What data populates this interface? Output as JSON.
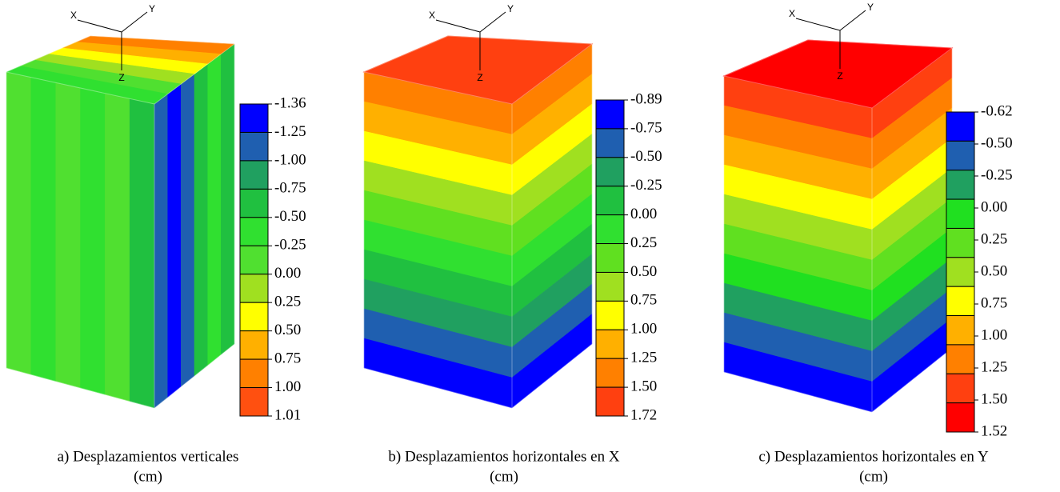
{
  "panels": [
    {
      "caption": "a) Desplazamientos verticales",
      "unit": "(cm)",
      "axes": [
        "X",
        "Y",
        "Z"
      ],
      "legend": {
        "labels": [
          "-1.36",
          "-1.25",
          "-1.00",
          "-0.75",
          "-0.50",
          "-0.25",
          "0.00",
          "0.25",
          "0.50",
          "0.75",
          "1.00",
          "1.01"
        ],
        "colors": [
          "#0000ff",
          "#1f5fb0",
          "#20a060",
          "#20c040",
          "#30e030",
          "#50e030",
          "#a0e020",
          "#ffff00",
          "#ffb000",
          "#ff8000",
          "#ff5010"
        ]
      }
    },
    {
      "caption": "b) Desplazamientos horizontales en X",
      "unit": "(cm)",
      "axes": [
        "X",
        "Y",
        "Z"
      ],
      "legend": {
        "labels": [
          "-0.89",
          "-0.75",
          "-0.50",
          "-0.25",
          "0.00",
          "0.25",
          "0.50",
          "0.75",
          "1.00",
          "1.25",
          "1.50",
          "1.72"
        ],
        "colors": [
          "#0000ff",
          "#1f5fb0",
          "#20a060",
          "#20c040",
          "#30e030",
          "#60e020",
          "#a0e020",
          "#ffff00",
          "#ffb000",
          "#ff8000",
          "#ff4010"
        ]
      }
    },
    {
      "caption": "c) Desplazamientos horizontales en Y",
      "unit": "(cm)",
      "axes": [
        "X",
        "Y",
        "Z"
      ],
      "legend": {
        "labels": [
          "-0.62",
          "-0.50",
          "-0.25",
          "0.00",
          "0.25",
          "0.50",
          "0.75",
          "1.00",
          "1.25",
          "1.50",
          "1.52"
        ],
        "colors": [
          "#0000ff",
          "#1f5fb0",
          "#20a060",
          "#20e020",
          "#60e020",
          "#a0e020",
          "#ffff00",
          "#ffb000",
          "#ff8000",
          "#ff4010",
          "#ff0000"
        ]
      }
    }
  ]
}
